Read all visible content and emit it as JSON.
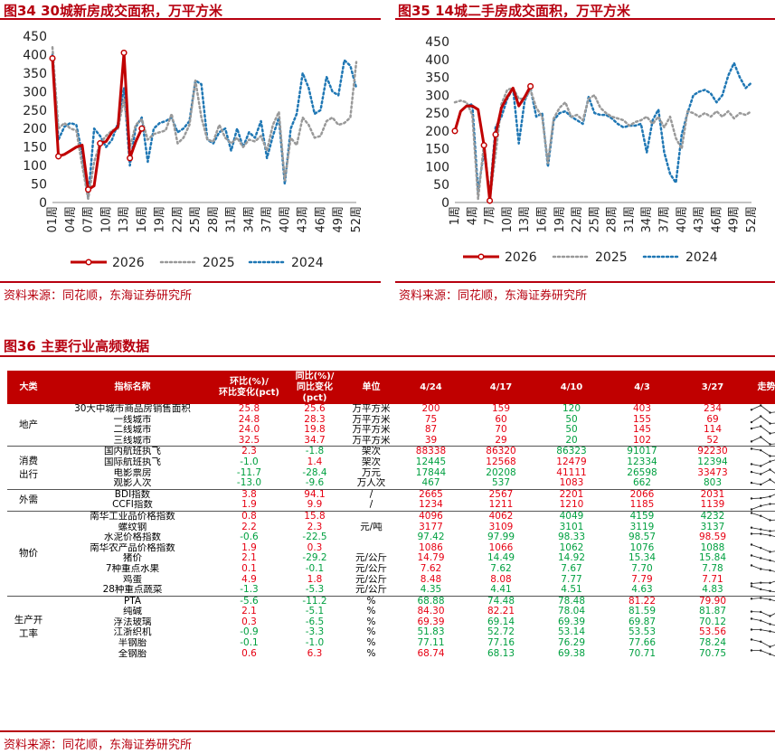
{
  "fig34": {
    "title": "图34 30城新房成交面积，万平方米",
    "source": "资料来源：同花顺，东海证券研究所"
  },
  "fig35": {
    "title": "图35 14城二手房成交面积，万平方米",
    "source": "资料来源：同花顺，东海证券研究所"
  },
  "fig36": {
    "title": "图36 主要行业高频数据",
    "source": "资料来源：同花顺，东海证券研究所"
  },
  "chart_data": [
    {
      "type": "line",
      "ylim": [
        0,
        450
      ],
      "yticks": [
        0,
        50,
        100,
        150,
        200,
        250,
        300,
        350,
        400,
        450
      ],
      "xticks": [
        "01周",
        "04周",
        "07周",
        "10周",
        "13周",
        "16周",
        "19周",
        "22周",
        "25周",
        "28周",
        "31周",
        "34周",
        "37周",
        "40周",
        "43周",
        "46周",
        "49周",
        "52周"
      ],
      "legend_position": "bottom",
      "colors": {
        "2026": "#c00000",
        "2025": "#999999",
        "2024": "#1f77b4"
      },
      "series": [
        {
          "name": "2026",
          "values": [
            390,
            125,
            130,
            140,
            150,
            155,
            35,
            45,
            160,
            165,
            190,
            205,
            405,
            120,
            165,
            200
          ]
        },
        {
          "name": "2025",
          "values": [
            420,
            200,
            215,
            200,
            195,
            100,
            10,
            110,
            160,
            180,
            195,
            200,
            280,
            150,
            210,
            225,
            170,
            185,
            190,
            195,
            240,
            160,
            175,
            210,
            330,
            230,
            170,
            165,
            210,
            175,
            160,
            175,
            150,
            170,
            165,
            180,
            140,
            210,
            245,
            60,
            175,
            155,
            230,
            210,
            175,
            180,
            220,
            230,
            210,
            215,
            230,
            380
          ]
        },
        {
          "name": "2024",
          "values": [
            400,
            170,
            205,
            215,
            210,
            130,
            10,
            200,
            180,
            150,
            170,
            215,
            310,
            100,
            205,
            230,
            110,
            200,
            215,
            220,
            230,
            190,
            200,
            220,
            330,
            320,
            170,
            160,
            190,
            200,
            140,
            200,
            150,
            190,
            175,
            220,
            120,
            180,
            230,
            50,
            200,
            240,
            350,
            310,
            240,
            250,
            340,
            300,
            290,
            385,
            370,
            310
          ]
        }
      ]
    },
    {
      "type": "line",
      "ylim": [
        0,
        450
      ],
      "yticks": [
        0,
        50,
        100,
        150,
        200,
        250,
        300,
        350,
        400,
        450
      ],
      "xticks": [
        "1周",
        "4周",
        "7周",
        "10周",
        "13周",
        "16周",
        "19周",
        "22周",
        "25周",
        "28周",
        "31周",
        "34周",
        "37周",
        "40周",
        "43周",
        "46周",
        "49周",
        "52周"
      ],
      "legend_position": "bottom",
      "colors": {
        "2026": "#c00000",
        "2025": "#999999",
        "2024": "#1f77b4"
      },
      "series": [
        {
          "name": "2026",
          "values": [
            200,
            255,
            270,
            270,
            260,
            160,
            5,
            190,
            265,
            295,
            320,
            270,
            295,
            325
          ]
        },
        {
          "name": "2025",
          "values": [
            280,
            285,
            280,
            245,
            10,
            165,
            10,
            135,
            275,
            315,
            320,
            290,
            290,
            315,
            265,
            240,
            110,
            235,
            265,
            280,
            240,
            245,
            230,
            290,
            300,
            265,
            250,
            240,
            235,
            230,
            215,
            225,
            230,
            240,
            220,
            240,
            210,
            240,
            180,
            150,
            255,
            250,
            240,
            250,
            240,
            255,
            240,
            255,
            235,
            250,
            245,
            255
          ]
        },
        {
          "name": "2024",
          "values": [
            200,
            255,
            270,
            275,
            30,
            145,
            20,
            210,
            240,
            290,
            320,
            165,
            285,
            320,
            240,
            250,
            100,
            230,
            250,
            255,
            240,
            230,
            220,
            295,
            250,
            245,
            245,
            235,
            220,
            210,
            215,
            215,
            220,
            140,
            230,
            260,
            140,
            80,
            55,
            190,
            250,
            300,
            310,
            315,
            305,
            280,
            300,
            355,
            390,
            350,
            320,
            335
          ]
        }
      ]
    }
  ],
  "table": {
    "headers": [
      "大类",
      "指标名称",
      "环比(%)/\n环比变化(pct)",
      "同比(%)/\n同比变化\n(pct)",
      "单位",
      "4/24",
      "4/17",
      "4/10",
      "4/3",
      "3/27",
      "走势图"
    ],
    "groups": [
      {
        "category": "地产",
        "rows": [
          {
            "name": "30大中城市商品房销售面积",
            "mom": "25.8",
            "yoy": "25.6",
            "unit": "万平方米",
            "vals": [
              "200",
              "159",
              "120",
              "403",
              "234"
            ],
            "colors": [
              "r",
              "r",
              "g",
              "r",
              "r"
            ]
          },
          {
            "name": "一线城市",
            "mom": "24.8",
            "yoy": "28.3",
            "unit": "万平方米",
            "vals": [
              "75",
              "60",
              "50",
              "155",
              "69"
            ],
            "colors": [
              "r",
              "r",
              "g",
              "r",
              "r"
            ]
          },
          {
            "name": "二线城市",
            "mom": "24.0",
            "yoy": "19.8",
            "unit": "万平方米",
            "vals": [
              "87",
              "70",
              "50",
              "145",
              "114"
            ],
            "colors": [
              "r",
              "r",
              "g",
              "r",
              "r"
            ]
          },
          {
            "name": "三线城市",
            "mom": "32.5",
            "yoy": "34.7",
            "unit": "万平方米",
            "vals": [
              "39",
              "29",
              "20",
              "102",
              "52"
            ],
            "colors": [
              "r",
              "r",
              "g",
              "r",
              "r"
            ]
          }
        ]
      },
      {
        "category": "消费\n出行",
        "rows": [
          {
            "name": "国内航班执飞",
            "mom": "2.3",
            "yoy": "-1.8",
            "unit": "架次",
            "vals": [
              "88338",
              "86320",
              "86323",
              "91017",
              "92230"
            ],
            "colors": [
              "r",
              "r",
              "g",
              "g",
              "r"
            ]
          },
          {
            "name": "国际航班执飞",
            "mom": "-1.0",
            "yoy": "1.4",
            "unit": "架次",
            "vals": [
              "12445",
              "12568",
              "12479",
              "12334",
              "12394"
            ],
            "colors": [
              "g",
              "r",
              "r",
              "g",
              "g"
            ]
          },
          {
            "name": "电影票房",
            "mom": "-11.7",
            "yoy": "-28.4",
            "unit": "万元",
            "vals": [
              "17844",
              "20208",
              "41111",
              "26598",
              "33473"
            ],
            "colors": [
              "g",
              "g",
              "r",
              "g",
              "r"
            ]
          },
          {
            "name": "观影人次",
            "mom": "-13.0",
            "yoy": "-9.6",
            "unit": "万人次",
            "vals": [
              "467",
              "537",
              "1083",
              "662",
              "803"
            ],
            "colors": [
              "g",
              "g",
              "r",
              "g",
              "g"
            ]
          }
        ]
      },
      {
        "category": "外需",
        "rows": [
          {
            "name": "BDI指数",
            "mom": "3.8",
            "yoy": "94.1",
            "unit": "/",
            "vals": [
              "2665",
              "2567",
              "2201",
              "2066",
              "2031"
            ],
            "colors": [
              "r",
              "r",
              "r",
              "r",
              "r"
            ]
          },
          {
            "name": "CCFI指数",
            "mom": "1.9",
            "yoy": "9.9",
            "unit": "/",
            "vals": [
              "1234",
              "1211",
              "1210",
              "1185",
              "1139"
            ],
            "colors": [
              "r",
              "r",
              "r",
              "r",
              "r"
            ]
          }
        ]
      },
      {
        "category": "物价",
        "rows": [
          {
            "name": "南华工业品价格指数",
            "mom": "0.8",
            "yoy": "15.8",
            "unit": "",
            "vals": [
              "4096",
              "4062",
              "4049",
              "4159",
              "4232"
            ],
            "colors": [
              "r",
              "r",
              "g",
              "g",
              "g"
            ]
          },
          {
            "name": "螺纹钢",
            "mom": "2.2",
            "yoy": "2.3",
            "unit": "元/吨",
            "vals": [
              "3177",
              "3109",
              "3101",
              "3119",
              "3137"
            ],
            "colors": [
              "r",
              "r",
              "g",
              "g",
              "g"
            ]
          },
          {
            "name": "水泥价格指数",
            "mom": "-0.6",
            "yoy": "-22.5",
            "unit": "",
            "vals": [
              "97.42",
              "97.99",
              "98.33",
              "98.57",
              "98.59"
            ],
            "colors": [
              "g",
              "g",
              "g",
              "g",
              "r"
            ]
          },
          {
            "name": "南华农产品价格指数",
            "mom": "1.9",
            "yoy": "0.3",
            "unit": "",
            "vals": [
              "1086",
              "1066",
              "1062",
              "1076",
              "1088"
            ],
            "colors": [
              "r",
              "r",
              "g",
              "g",
              "g"
            ]
          },
          {
            "name": "猪价",
            "mom": "2.1",
            "yoy": "-29.2",
            "unit": "元/公斤",
            "vals": [
              "14.79",
              "14.49",
              "14.92",
              "15.34",
              "15.84"
            ],
            "colors": [
              "r",
              "g",
              "g",
              "g",
              "g"
            ]
          },
          {
            "name": "7种重点水果",
            "mom": "0.1",
            "yoy": "-0.1",
            "unit": "元/公斤",
            "vals": [
              "7.62",
              "7.62",
              "7.67",
              "7.70",
              "7.78"
            ],
            "colors": [
              "r",
              "g",
              "g",
              "g",
              "g"
            ]
          },
          {
            "name": "鸡蛋",
            "mom": "4.9",
            "yoy": "1.8",
            "unit": "元/公斤",
            "vals": [
              "8.48",
              "8.08",
              "7.77",
              "7.79",
              "7.71"
            ],
            "colors": [
              "r",
              "r",
              "g",
              "r",
              "r"
            ]
          },
          {
            "name": "28种重点蔬菜",
            "mom": "-1.3",
            "yoy": "-5.3",
            "unit": "元/公斤",
            "vals": [
              "4.35",
              "4.41",
              "4.51",
              "4.63",
              "4.83"
            ],
            "colors": [
              "g",
              "g",
              "g",
              "g",
              "g"
            ]
          }
        ]
      },
      {
        "category": "生产开\n工率",
        "rows": [
          {
            "name": "PTA",
            "mom": "-5.6",
            "yoy": "-11.2",
            "unit": "%",
            "vals": [
              "68.88",
              "74.48",
              "78.48",
              "81.22",
              "79.90"
            ],
            "colors": [
              "g",
              "g",
              "g",
              "r",
              "r"
            ]
          },
          {
            "name": "纯碱",
            "mom": "2.1",
            "yoy": "-5.1",
            "unit": "%",
            "vals": [
              "84.30",
              "82.21",
              "78.04",
              "81.59",
              "81.87"
            ],
            "colors": [
              "r",
              "r",
              "g",
              "g",
              "g"
            ]
          },
          {
            "name": "浮法玻璃",
            "mom": "0.3",
            "yoy": "-6.5",
            "unit": "%",
            "vals": [
              "69.39",
              "69.14",
              "69.39",
              "69.87",
              "70.12"
            ],
            "colors": [
              "r",
              "g",
              "g",
              "g",
              "g"
            ]
          },
          {
            "name": "江浙织机",
            "mom": "-0.9",
            "yoy": "-3.3",
            "unit": "%",
            "vals": [
              "51.83",
              "52.72",
              "53.14",
              "53.53",
              "53.56"
            ],
            "colors": [
              "g",
              "g",
              "g",
              "g",
              "r"
            ]
          },
          {
            "name": "半钢胎",
            "mom": "-0.1",
            "yoy": "-1.0",
            "unit": "%",
            "vals": [
              "77.11",
              "77.16",
              "76.29",
              "77.66",
              "78.24"
            ],
            "colors": [
              "g",
              "g",
              "g",
              "g",
              "g"
            ]
          },
          {
            "name": "全钢胎",
            "mom": "0.6",
            "yoy": "6.3",
            "unit": "%",
            "vals": [
              "68.74",
              "68.13",
              "69.38",
              "70.71",
              "70.75"
            ],
            "colors": [
              "r",
              "g",
              "g",
              "g",
              "g"
            ]
          }
        ]
      }
    ]
  }
}
